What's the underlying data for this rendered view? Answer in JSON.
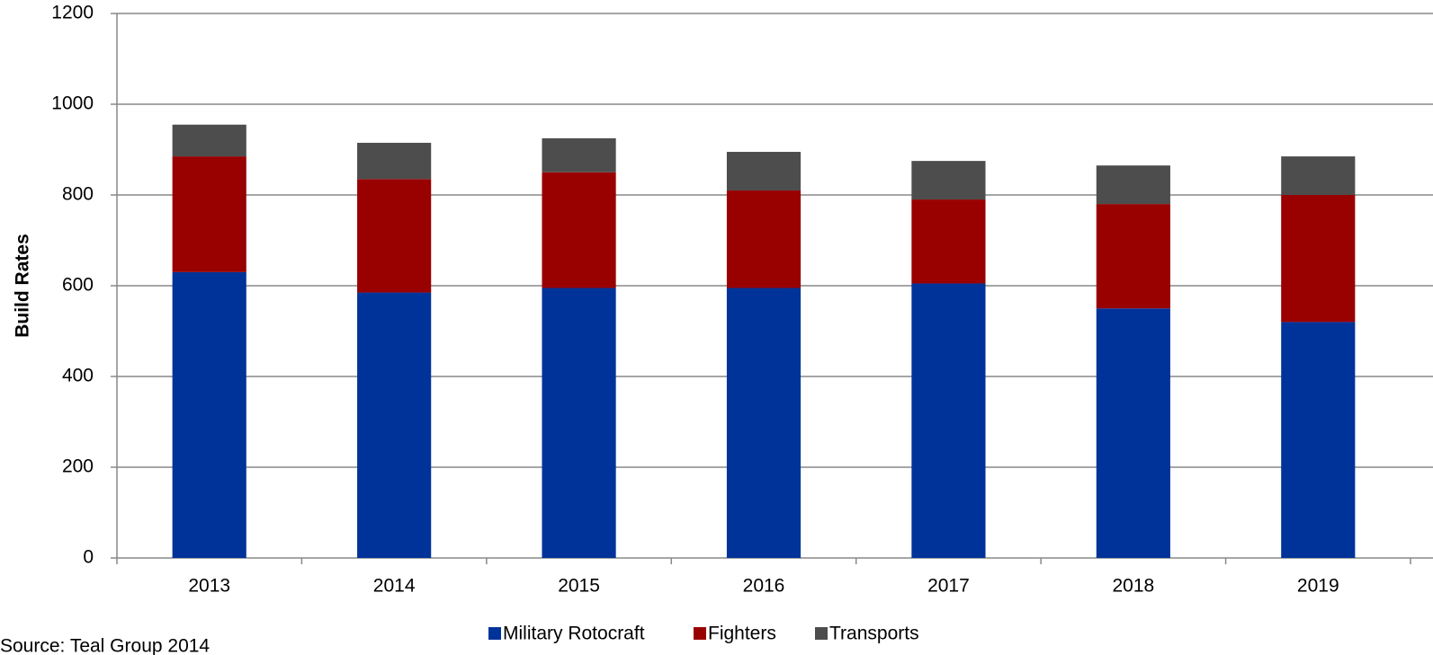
{
  "chart_data": {
    "type": "bar",
    "stacked": true,
    "y_label": "Build Rates",
    "note": "Source: Teal Group 2014",
    "categories": [
      "2013",
      "2014",
      "2015",
      "2016",
      "2017",
      "2018",
      "2019"
    ],
    "series": [
      {
        "name": "Military Rotocraft",
        "color": "#003399",
        "values": [
          630,
          585,
          595,
          595,
          605,
          550,
          520
        ]
      },
      {
        "name": "Fighters",
        "color": "#990000",
        "values": [
          255,
          250,
          255,
          215,
          185,
          230,
          280
        ]
      },
      {
        "name": "Transports",
        "color": "#4d4d4d",
        "values": [
          70,
          80,
          75,
          85,
          85,
          85,
          85
        ]
      }
    ],
    "ylim": [
      0,
      1200
    ],
    "yticks": [
      0,
      200,
      400,
      600,
      800,
      1000,
      1200
    ],
    "grid": true,
    "legend": "bottom"
  }
}
